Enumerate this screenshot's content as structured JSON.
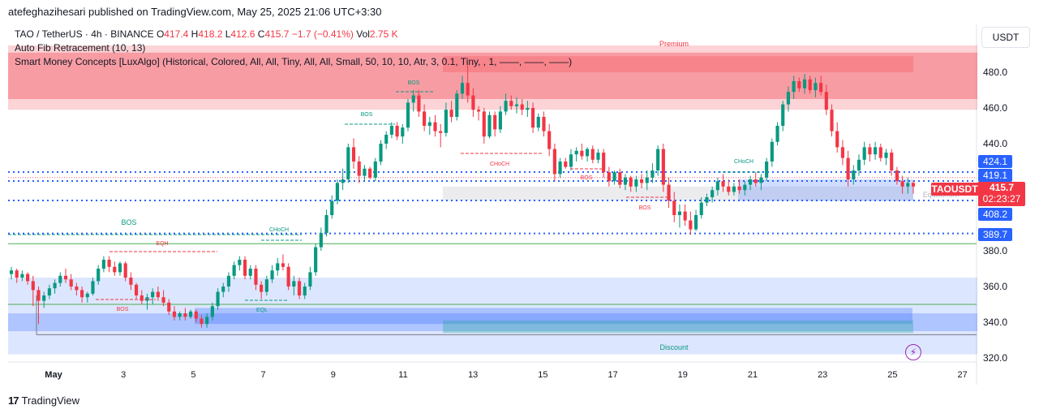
{
  "header": {
    "publisher": "atefeghazihesari published on TradingView.com, May 25, 2025 21:06 UTC+3:30"
  },
  "legend": {
    "symbol": "TAO / TetherUS · 4h · BINANCE",
    "o_label": "O",
    "o_value": "417.4",
    "h_label": "H",
    "h_value": "418.2",
    "l_label": "L",
    "l_value": "412.6",
    "c_label": "C",
    "c_value": "415.7",
    "change": "−1.7 (−0.41%)",
    "vol_label": "Vol",
    "vol_value": "2.75 K",
    "fib": "Auto Fib Retracement (10, 13)",
    "smc": "Smart Money Concepts [LuxAlgo] (Historical, Colored, All, All, Tiny, All, All, Small, 50, 10, 10, Atr, 3, 0.1, Tiny, , 1, ——, ——, ——)"
  },
  "currency_button": "USDT",
  "price_axis": {
    "ticks": [
      "480.0",
      "460.0",
      "440.0",
      "380.0",
      "360.0",
      "340.0",
      "320.0"
    ],
    "tags": [
      "424.1",
      "419.1",
      "408.2",
      "389.7"
    ],
    "symbol_tag": "TAOUSDT",
    "current_price": "415.7",
    "countdown": "02:23:27"
  },
  "time_axis": {
    "ticks": [
      "May",
      "3",
      "5",
      "7",
      "9",
      "11",
      "13",
      "15",
      "17",
      "19",
      "21",
      "23",
      "25",
      "27"
    ]
  },
  "annotations": {
    "premium": "Premium",
    "discount": "Discount",
    "equilibrium": "Equilibrium",
    "bos": "BOS",
    "choch": "CHoCH",
    "eqh": "EQH",
    "eql": "EQL"
  },
  "footer": {
    "brand": "TradingView",
    "logo": "17"
  },
  "colors": {
    "up": "#089981",
    "down": "#f23645",
    "premium": "#f23645",
    "discount": "#2962ff",
    "level": "#2962ff"
  },
  "chart_data": {
    "type": "candlestick",
    "symbol": "TAO / TetherUS",
    "interval": "4h",
    "exchange": "BINANCE",
    "ylim": [
      313,
      500
    ],
    "candles": [
      [
        367,
        371,
        364,
        369
      ],
      [
        369,
        370,
        362,
        365
      ],
      [
        365,
        369,
        363,
        367
      ],
      [
        367,
        368,
        361,
        363
      ],
      [
        363,
        366,
        349,
        358
      ],
      [
        358,
        360,
        339,
        352
      ],
      [
        352,
        357,
        348,
        355
      ],
      [
        355,
        361,
        353,
        359
      ],
      [
        359,
        364,
        356,
        362
      ],
      [
        362,
        368,
        360,
        366
      ],
      [
        366,
        370,
        362,
        364
      ],
      [
        364,
        367,
        358,
        360
      ],
      [
        360,
        362,
        355,
        358
      ],
      [
        358,
        360,
        351,
        354
      ],
      [
        354,
        357,
        351,
        356
      ],
      [
        356,
        365,
        355,
        363
      ],
      [
        363,
        372,
        361,
        370
      ],
      [
        370,
        377,
        368,
        375
      ],
      [
        375,
        377,
        368,
        371
      ],
      [
        371,
        374,
        366,
        368
      ],
      [
        368,
        374,
        366,
        373
      ],
      [
        373,
        374,
        363,
        365
      ],
      [
        365,
        368,
        358,
        361
      ],
      [
        361,
        362,
        353,
        355
      ],
      [
        355,
        358,
        350,
        352
      ],
      [
        352,
        356,
        347,
        354
      ],
      [
        354,
        359,
        350,
        357
      ],
      [
        357,
        360,
        352,
        354
      ],
      [
        354,
        358,
        349,
        351
      ],
      [
        351,
        353,
        344,
        346
      ],
      [
        346,
        349,
        341,
        343
      ],
      [
        343,
        346,
        341,
        345
      ],
      [
        345,
        348,
        341,
        343
      ],
      [
        343,
        347,
        342,
        346
      ],
      [
        346,
        347,
        340,
        342
      ],
      [
        342,
        344,
        337,
        339
      ],
      [
        339,
        345,
        337,
        343
      ],
      [
        343,
        351,
        341,
        349
      ],
      [
        349,
        359,
        347,
        357
      ],
      [
        357,
        362,
        354,
        360
      ],
      [
        360,
        368,
        357,
        366
      ],
      [
        366,
        374,
        364,
        372
      ],
      [
        372,
        377,
        369,
        375
      ],
      [
        375,
        377,
        364,
        366
      ],
      [
        366,
        372,
        364,
        370
      ],
      [
        370,
        372,
        358,
        361
      ],
      [
        361,
        363,
        353,
        357
      ],
      [
        357,
        366,
        355,
        364
      ],
      [
        364,
        372,
        362,
        369
      ],
      [
        369,
        376,
        366,
        373
      ],
      [
        373,
        378,
        369,
        371
      ],
      [
        371,
        373,
        358,
        360
      ],
      [
        360,
        366,
        355,
        363
      ],
      [
        363,
        365,
        353,
        355
      ],
      [
        355,
        362,
        353,
        360
      ],
      [
        360,
        371,
        358,
        368
      ],
      [
        368,
        384,
        366,
        382
      ],
      [
        382,
        393,
        380,
        390
      ],
      [
        390,
        403,
        388,
        400
      ],
      [
        400,
        411,
        398,
        408
      ],
      [
        408,
        420,
        406,
        418
      ],
      [
        418,
        426,
        414,
        420
      ],
      [
        420,
        440,
        418,
        438
      ],
      [
        438,
        443,
        426,
        430
      ],
      [
        430,
        433,
        418,
        422
      ],
      [
        422,
        428,
        419,
        426
      ],
      [
        426,
        427,
        420,
        421
      ],
      [
        421,
        432,
        419,
        430
      ],
      [
        430,
        442,
        428,
        440
      ],
      [
        440,
        447,
        437,
        445
      ],
      [
        445,
        452,
        443,
        450
      ],
      [
        450,
        452,
        442,
        444
      ],
      [
        444,
        451,
        440,
        449
      ],
      [
        449,
        465,
        447,
        463
      ],
      [
        463,
        470,
        458,
        467
      ],
      [
        467,
        470,
        455,
        458
      ],
      [
        458,
        462,
        447,
        450
      ],
      [
        450,
        455,
        445,
        452
      ],
      [
        452,
        456,
        444,
        447
      ],
      [
        447,
        451,
        438,
        446
      ],
      [
        446,
        463,
        444,
        459
      ],
      [
        459,
        464,
        452,
        455
      ],
      [
        455,
        470,
        453,
        468
      ],
      [
        468,
        478,
        465,
        474
      ],
      [
        474,
        484,
        463,
        467
      ],
      [
        467,
        471,
        455,
        459
      ],
      [
        459,
        461,
        453,
        458
      ],
      [
        458,
        460,
        440,
        444
      ],
      [
        444,
        458,
        443,
        456
      ],
      [
        456,
        458,
        444,
        448
      ],
      [
        448,
        461,
        446,
        458
      ],
      [
        458,
        468,
        456,
        464
      ],
      [
        464,
        467,
        459,
        461
      ],
      [
        461,
        466,
        457,
        462
      ],
      [
        462,
        465,
        456,
        459
      ],
      [
        459,
        464,
        455,
        460
      ],
      [
        460,
        463,
        446,
        449
      ],
      [
        449,
        457,
        447,
        455
      ],
      [
        455,
        458,
        444,
        447
      ],
      [
        447,
        451,
        433,
        437
      ],
      [
        437,
        440,
        419,
        423
      ],
      [
        423,
        432,
        421,
        430
      ],
      [
        430,
        432,
        426,
        427
      ],
      [
        427,
        437,
        425,
        434
      ],
      [
        434,
        438,
        430,
        436
      ],
      [
        436,
        440,
        431,
        433
      ],
      [
        433,
        438,
        430,
        437
      ],
      [
        437,
        439,
        429,
        431
      ],
      [
        431,
        437,
        429,
        435
      ],
      [
        435,
        437,
        421,
        424
      ],
      [
        424,
        427,
        416,
        419
      ],
      [
        419,
        425,
        417,
        424
      ],
      [
        424,
        426,
        415,
        417
      ],
      [
        417,
        423,
        414,
        421
      ],
      [
        421,
        422,
        413,
        416
      ],
      [
        416,
        422,
        413,
        420
      ],
      [
        420,
        423,
        415,
        418
      ],
      [
        418,
        425,
        414,
        421
      ],
      [
        421,
        429,
        418,
        425
      ],
      [
        425,
        439,
        422,
        437
      ],
      [
        437,
        440,
        413,
        417
      ],
      [
        417,
        421,
        404,
        408
      ],
      [
        408,
        413,
        396,
        400
      ],
      [
        400,
        406,
        393,
        402
      ],
      [
        402,
        406,
        394,
        397
      ],
      [
        397,
        402,
        389,
        392
      ],
      [
        392,
        403,
        391,
        400
      ],
      [
        400,
        410,
        398,
        407
      ],
      [
        407,
        412,
        405,
        410
      ],
      [
        410,
        416,
        407,
        414
      ],
      [
        414,
        421,
        411,
        419
      ],
      [
        419,
        423,
        413,
        416
      ],
      [
        416,
        420,
        411,
        413
      ],
      [
        413,
        418,
        411,
        416
      ],
      [
        416,
        420,
        412,
        414
      ],
      [
        414,
        419,
        411,
        417
      ],
      [
        417,
        422,
        414,
        420
      ],
      [
        420,
        424,
        416,
        418
      ],
      [
        418,
        423,
        414,
        421
      ],
      [
        421,
        432,
        419,
        430
      ],
      [
        430,
        443,
        427,
        441
      ],
      [
        441,
        452,
        439,
        450
      ],
      [
        450,
        464,
        447,
        462
      ],
      [
        462,
        472,
        458,
        469
      ],
      [
        469,
        478,
        465,
        475
      ],
      [
        475,
        477,
        469,
        471
      ],
      [
        471,
        479,
        468,
        476
      ],
      [
        476,
        478,
        468,
        470
      ],
      [
        470,
        477,
        466,
        474
      ],
      [
        474,
        478,
        467,
        469
      ],
      [
        469,
        473,
        456,
        459
      ],
      [
        459,
        462,
        444,
        447
      ],
      [
        447,
        452,
        435,
        438
      ],
      [
        438,
        442,
        428,
        432
      ],
      [
        432,
        436,
        416,
        420
      ],
      [
        420,
        428,
        417,
        425
      ],
      [
        425,
        434,
        422,
        431
      ],
      [
        431,
        441,
        428,
        438
      ],
      [
        438,
        440,
        430,
        434
      ],
      [
        434,
        441,
        431,
        438
      ],
      [
        438,
        440,
        430,
        432
      ],
      [
        432,
        437,
        428,
        435
      ],
      [
        435,
        437,
        422,
        425
      ],
      [
        425,
        427,
        417,
        419
      ],
      [
        419,
        422,
        412,
        416
      ],
      [
        416,
        421,
        412,
        418
      ],
      [
        418,
        419,
        412,
        416
      ]
    ],
    "levels": [
      {
        "label": "424.1",
        "value": 424.1
      },
      {
        "label": "419.1",
        "value": 419.1
      },
      {
        "label": "408.2",
        "value": 408.2
      },
      {
        "label": "389.7",
        "value": 389.7
      }
    ],
    "zones": [
      {
        "name": "Premium",
        "from": 459,
        "to": 495
      },
      {
        "name": "Discount",
        "from": 322,
        "to": 349
      },
      {
        "name": "Equilibrium",
        "from": 408,
        "to": 416
      }
    ]
  }
}
